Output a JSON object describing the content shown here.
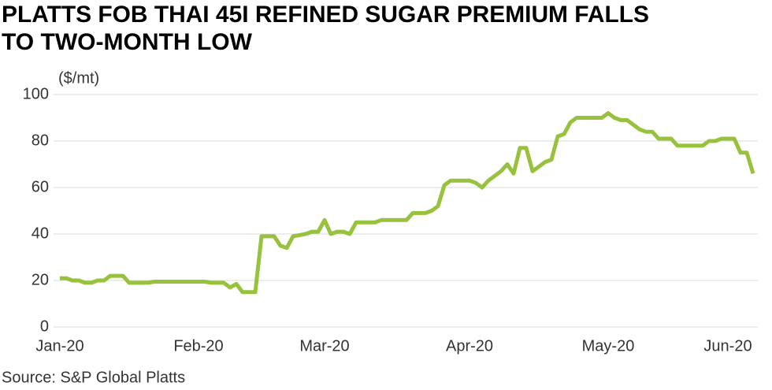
{
  "chart_data": {
    "type": "line",
    "title": [
      "PLATTS FOB THAI 45I REFINED SUGAR PREMIUM FALLS",
      "TO TWO-MONTH LOW"
    ],
    "y_label": "($/mt)",
    "source": "Source: S&P Global Platts",
    "categories": [
      "Jan-20",
      null,
      null,
      null,
      null,
      null,
      null,
      null,
      null,
      null,
      null,
      null,
      null,
      null,
      null,
      null,
      null,
      null,
      null,
      null,
      null,
      null,
      "Feb-20",
      null,
      null,
      null,
      null,
      null,
      null,
      null,
      null,
      null,
      null,
      null,
      null,
      null,
      null,
      null,
      null,
      null,
      null,
      null,
      "Mar-20",
      null,
      null,
      null,
      null,
      null,
      null,
      null,
      null,
      null,
      null,
      null,
      null,
      null,
      null,
      null,
      null,
      null,
      null,
      null,
      null,
      null,
      null,
      "Apr-20",
      null,
      null,
      null,
      null,
      null,
      null,
      null,
      null,
      null,
      null,
      null,
      null,
      null,
      null,
      null,
      null,
      null,
      null,
      null,
      null,
      null,
      "May-20",
      null,
      null,
      null,
      null,
      null,
      null,
      null,
      null,
      null,
      null,
      null,
      null,
      null,
      null,
      null,
      null,
      null,
      null,
      "Jun-20",
      null,
      null,
      null,
      null
    ],
    "series": [
      {
        "name": "Premium",
        "color": "#98c13d",
        "values": [
          21,
          21,
          20,
          20,
          19,
          19,
          20,
          20,
          22,
          22,
          22,
          19,
          19,
          19,
          19,
          19.5,
          19.5,
          19.5,
          19.5,
          19.5,
          19.5,
          19.5,
          19.5,
          19.5,
          19,
          19,
          19,
          17,
          18.5,
          15,
          15,
          15,
          39,
          39,
          39,
          35,
          34,
          39,
          39.5,
          40,
          41,
          41,
          46,
          40,
          41,
          41,
          40,
          45,
          45,
          45,
          45,
          46,
          46,
          46,
          46,
          46,
          49,
          49,
          49,
          50,
          52,
          61,
          63,
          63,
          63,
          63,
          62,
          60,
          63,
          65,
          67,
          70,
          66,
          77,
          77,
          67,
          69,
          71,
          72,
          82,
          83,
          88,
          90,
          90,
          90,
          90,
          90,
          92,
          90,
          89,
          89,
          87,
          85,
          84,
          84,
          81,
          81,
          81,
          78,
          78,
          78,
          78,
          78,
          80,
          80,
          81,
          81,
          81,
          75,
          75,
          66
        ]
      }
    ],
    "ylim": [
      0,
      100
    ],
    "yticks": [
      0,
      20,
      40,
      60,
      80,
      100
    ],
    "grid": true
  }
}
